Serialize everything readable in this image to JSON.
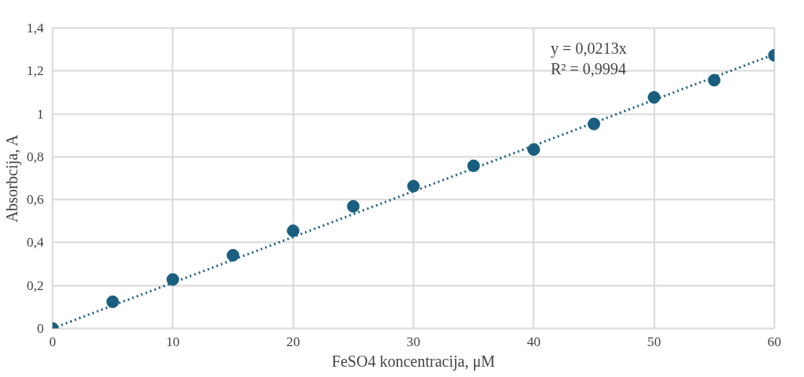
{
  "chart_data": {
    "type": "scatter",
    "xlabel": "FeSO4 koncentracija, μM",
    "ylabel": "Absorbcija, A",
    "annotations": [
      "y = 0,0213x",
      "R² = 0,9994"
    ],
    "series": [
      {
        "color": "#1a5f80",
        "x": [
          0,
          5,
          10,
          15,
          20,
          25,
          30,
          35,
          40,
          45,
          50,
          55,
          60
        ],
        "values": [
          0,
          0.124,
          0.228,
          0.341,
          0.455,
          0.569,
          0.663,
          0.758,
          0.834,
          0.953,
          1.077,
          1.157,
          1.273
        ],
        "marker": "circle"
      },
      {
        "type": "line",
        "color": "#1a5f80",
        "x": [
          0,
          60
        ],
        "values": [
          0,
          1.278
        ],
        "line_style": "dotted"
      }
    ],
    "xlim": [
      0,
      60
    ],
    "xticks": [
      0,
      10,
      20,
      30,
      40,
      50,
      60
    ],
    "ylim": [
      0,
      1.4
    ],
    "yticks": [
      0,
      {
        "value": 0.2,
        "label": "0,2"
      },
      {
        "value": 0.4,
        "label": "0,4"
      },
      {
        "value": 0.6,
        "label": "0,6"
      },
      {
        "value": 0.8,
        "label": "0,8"
      },
      1,
      {
        "value": 1.2,
        "label": "1,2"
      },
      {
        "value": 1.4,
        "label": "1,4"
      }
    ],
    "grid": true
  }
}
